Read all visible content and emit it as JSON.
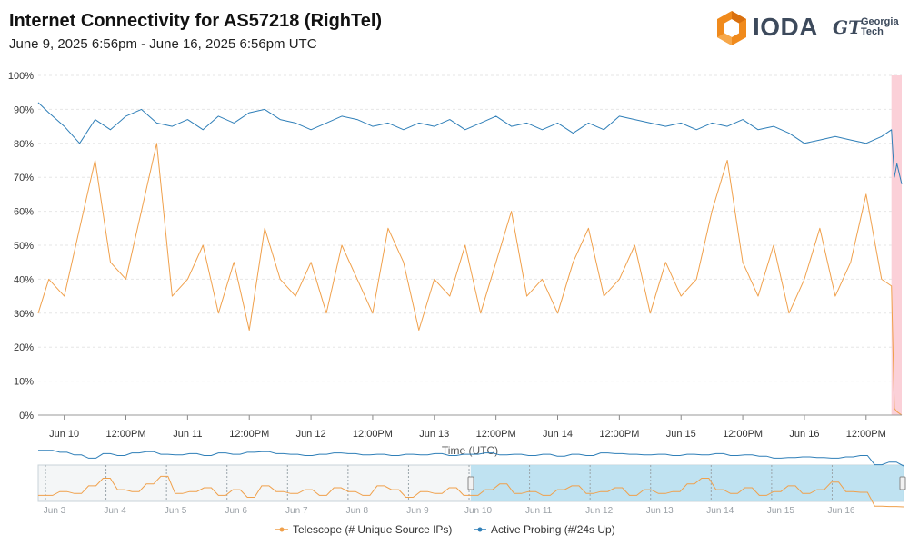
{
  "header": {
    "title": "Internet Connectivity for  AS57218 (RighTel)",
    "subtitle": "June 9, 2025 6:56pm - June 16, 2025 6:56pm UTC"
  },
  "logo": {
    "brand": "IODA",
    "partner_mark": "GT",
    "partner_line1": "Georgia",
    "partner_line2": "Tech",
    "icon": "ioda-hexagon-logo"
  },
  "colors": {
    "telescope": "#f0a04b",
    "active_probing": "#2f7fb8",
    "alert_band": "#fbd0d8",
    "navigator_selection": "#b5def0",
    "grid": "#e6e6e6"
  },
  "chart_data": {
    "type": "line",
    "xlabel": "Time (UTC)",
    "ylabel": "",
    "ylim": [
      0,
      100
    ],
    "y_tick_labels": [
      "0%",
      "10%",
      "20%",
      "30%",
      "40%",
      "50%",
      "60%",
      "70%",
      "80%",
      "90%",
      "100%"
    ],
    "x_range": [
      "2025-06-09 18:56",
      "2025-06-16 18:56"
    ],
    "x_ticks": [
      {
        "t": "2025-06-10 00:00",
        "label": "Jun 10"
      },
      {
        "t": "2025-06-10 12:00",
        "label": "12:00PM"
      },
      {
        "t": "2025-06-11 00:00",
        "label": "Jun 11"
      },
      {
        "t": "2025-06-11 12:00",
        "label": "12:00PM"
      },
      {
        "t": "2025-06-12 00:00",
        "label": "Jun 12"
      },
      {
        "t": "2025-06-12 12:00",
        "label": "12:00PM"
      },
      {
        "t": "2025-06-13 00:00",
        "label": "Jun 13"
      },
      {
        "t": "2025-06-13 12:00",
        "label": "12:00PM"
      },
      {
        "t": "2025-06-14 00:00",
        "label": "Jun 14"
      },
      {
        "t": "2025-06-14 12:00",
        "label": "12:00PM"
      },
      {
        "t": "2025-06-15 00:00",
        "label": "Jun 15"
      },
      {
        "t": "2025-06-15 12:00",
        "label": "12:00PM"
      },
      {
        "t": "2025-06-16 00:00",
        "label": "Jun 16"
      },
      {
        "t": "2025-06-16 12:00",
        "label": "12:00PM"
      }
    ],
    "alert_range": [
      "2025-06-16 16:56",
      "2025-06-16 18:56"
    ],
    "series": [
      {
        "name": "Active Probing (#/24s Up)",
        "color": "#2f7fb8",
        "x": [
          "2025-06-09 18:56",
          "2025-06-09 21:00",
          "2025-06-10 00:00",
          "2025-06-10 03:00",
          "2025-06-10 06:00",
          "2025-06-10 09:00",
          "2025-06-10 12:00",
          "2025-06-10 15:00",
          "2025-06-10 18:00",
          "2025-06-10 21:00",
          "2025-06-11 00:00",
          "2025-06-11 03:00",
          "2025-06-11 06:00",
          "2025-06-11 09:00",
          "2025-06-11 12:00",
          "2025-06-11 15:00",
          "2025-06-11 18:00",
          "2025-06-11 21:00",
          "2025-06-12 00:00",
          "2025-06-12 03:00",
          "2025-06-12 06:00",
          "2025-06-12 09:00",
          "2025-06-12 12:00",
          "2025-06-12 15:00",
          "2025-06-12 18:00",
          "2025-06-12 21:00",
          "2025-06-13 00:00",
          "2025-06-13 03:00",
          "2025-06-13 06:00",
          "2025-06-13 09:00",
          "2025-06-13 12:00",
          "2025-06-13 15:00",
          "2025-06-13 18:00",
          "2025-06-13 21:00",
          "2025-06-14 00:00",
          "2025-06-14 03:00",
          "2025-06-14 06:00",
          "2025-06-14 09:00",
          "2025-06-14 12:00",
          "2025-06-14 15:00",
          "2025-06-14 18:00",
          "2025-06-14 21:00",
          "2025-06-15 00:00",
          "2025-06-15 03:00",
          "2025-06-15 06:00",
          "2025-06-15 09:00",
          "2025-06-15 12:00",
          "2025-06-15 15:00",
          "2025-06-15 18:00",
          "2025-06-15 21:00",
          "2025-06-16 00:00",
          "2025-06-16 03:00",
          "2025-06-16 06:00",
          "2025-06-16 09:00",
          "2025-06-16 12:00",
          "2025-06-16 15:00",
          "2025-06-16 16:56",
          "2025-06-16 17:30",
          "2025-06-16 18:00",
          "2025-06-16 18:56"
        ],
        "values": [
          92,
          89,
          85,
          80,
          87,
          84,
          88,
          90,
          86,
          85,
          87,
          84,
          88,
          86,
          89,
          90,
          87,
          86,
          84,
          86,
          88,
          87,
          85,
          86,
          84,
          86,
          85,
          87,
          84,
          86,
          88,
          85,
          86,
          84,
          86,
          83,
          86,
          84,
          88,
          87,
          86,
          85,
          86,
          84,
          86,
          85,
          87,
          84,
          85,
          83,
          80,
          81,
          82,
          81,
          80,
          82,
          84,
          70,
          74,
          68
        ]
      },
      {
        "name": "Telescope (# Unique Source IPs)",
        "color": "#f0a04b",
        "x": [
          "2025-06-09 18:56",
          "2025-06-09 21:00",
          "2025-06-10 00:00",
          "2025-06-10 03:00",
          "2025-06-10 06:00",
          "2025-06-10 09:00",
          "2025-06-10 12:00",
          "2025-06-10 15:00",
          "2025-06-10 18:00",
          "2025-06-10 21:00",
          "2025-06-11 00:00",
          "2025-06-11 03:00",
          "2025-06-11 06:00",
          "2025-06-11 09:00",
          "2025-06-11 12:00",
          "2025-06-11 15:00",
          "2025-06-11 18:00",
          "2025-06-11 21:00",
          "2025-06-12 00:00",
          "2025-06-12 03:00",
          "2025-06-12 06:00",
          "2025-06-12 09:00",
          "2025-06-12 12:00",
          "2025-06-12 15:00",
          "2025-06-12 18:00",
          "2025-06-12 21:00",
          "2025-06-13 00:00",
          "2025-06-13 03:00",
          "2025-06-13 06:00",
          "2025-06-13 09:00",
          "2025-06-13 12:00",
          "2025-06-13 15:00",
          "2025-06-13 18:00",
          "2025-06-13 21:00",
          "2025-06-14 00:00",
          "2025-06-14 03:00",
          "2025-06-14 06:00",
          "2025-06-14 09:00",
          "2025-06-14 12:00",
          "2025-06-14 15:00",
          "2025-06-14 18:00",
          "2025-06-14 21:00",
          "2025-06-15 00:00",
          "2025-06-15 03:00",
          "2025-06-15 06:00",
          "2025-06-15 09:00",
          "2025-06-15 12:00",
          "2025-06-15 15:00",
          "2025-06-15 18:00",
          "2025-06-15 21:00",
          "2025-06-16 00:00",
          "2025-06-16 03:00",
          "2025-06-16 06:00",
          "2025-06-16 09:00",
          "2025-06-16 12:00",
          "2025-06-16 15:00",
          "2025-06-16 16:56",
          "2025-06-16 17:30",
          "2025-06-16 18:00",
          "2025-06-16 18:56"
        ],
        "values": [
          30,
          40,
          35,
          55,
          75,
          45,
          40,
          60,
          80,
          35,
          40,
          50,
          30,
          45,
          25,
          55,
          40,
          35,
          45,
          30,
          50,
          40,
          30,
          55,
          45,
          25,
          40,
          35,
          50,
          30,
          45,
          60,
          35,
          40,
          30,
          45,
          55,
          35,
          40,
          50,
          30,
          45,
          35,
          40,
          60,
          75,
          45,
          35,
          50,
          30,
          40,
          55,
          35,
          45,
          65,
          40,
          38,
          2,
          1,
          0
        ]
      }
    ]
  },
  "navigator": {
    "date_labels": [
      "Jun 3",
      "Jun 4",
      "Jun 5",
      "Jun 6",
      "Jun 7",
      "Jun 8",
      "Jun 9",
      "Jun 10",
      "Jun 11",
      "Jun 12",
      "Jun 13",
      "Jun 14",
      "Jun 15",
      "Jun 16"
    ]
  },
  "legend": {
    "items": [
      "Telescope (# Unique Source IPs)",
      "Active Probing (#/24s Up)"
    ]
  }
}
